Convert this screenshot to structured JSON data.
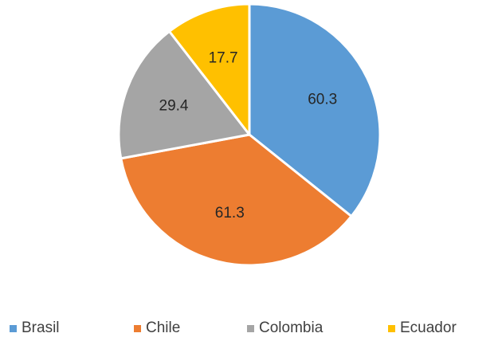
{
  "chart_data": {
    "type": "pie",
    "categories": [
      "Brasil",
      "Chile",
      "Colombia",
      "Ecuador"
    ],
    "values": [
      60.3,
      61.3,
      29.4,
      17.7
    ],
    "data_labels": [
      "60.3",
      "61.3",
      "29.4",
      "17.7"
    ],
    "colors": [
      "#5B9BD5",
      "#ED7D31",
      "#A5A5A5",
      "#FFC000"
    ],
    "start_angle": "12 o'clock",
    "direction": "clockwise",
    "legend": "bottom",
    "title": ""
  }
}
